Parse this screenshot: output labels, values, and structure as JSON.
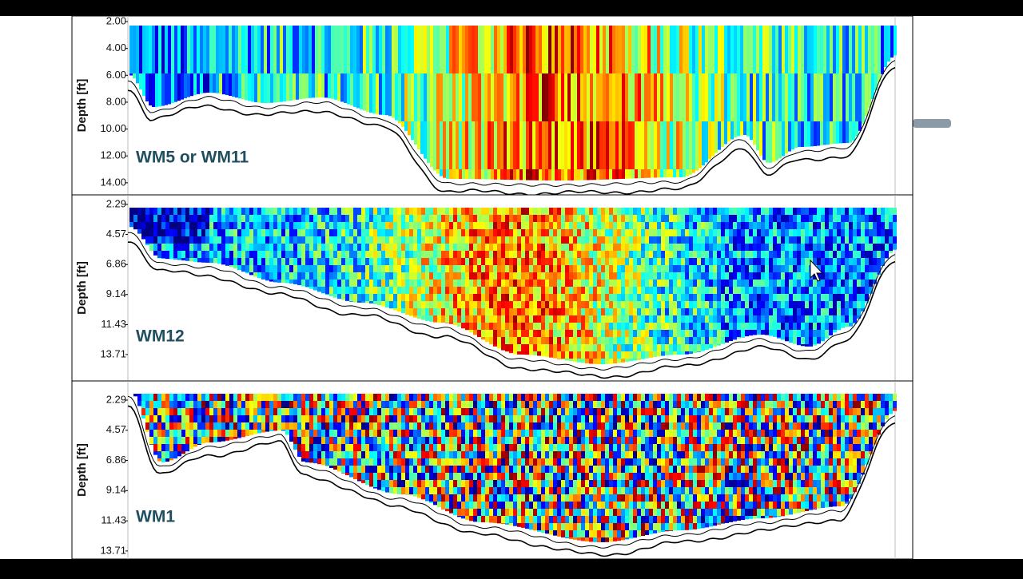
{
  "panels": [
    {
      "label": "WM5 or WM11",
      "y_axis_label": "Depth [ft]",
      "ylim": [
        1.58,
        14.9
      ],
      "yticks": [
        {
          "value": 2,
          "label": "2.00"
        },
        {
          "value": 4,
          "label": "4.00"
        },
        {
          "value": 6,
          "label": "6.00"
        },
        {
          "value": 8,
          "label": "8.00"
        },
        {
          "value": 10,
          "label": "10.00"
        },
        {
          "value": 12,
          "label": "12.00"
        },
        {
          "value": 14,
          "label": "14.00"
        }
      ]
    },
    {
      "label": "WM12",
      "y_axis_label": "Depth [ft]",
      "ylim": [
        1.56,
        15.72
      ],
      "yticks": [
        2.29,
        4.57,
        6.86,
        9.14,
        11.43,
        13.71
      ]
    },
    {
      "label": "WM1",
      "y_axis_label": "Depth [ft]",
      "ylim": [
        0.84,
        14.32
      ],
      "yticks": [
        2.29,
        4.57,
        6.86,
        9.14,
        11.43,
        13.71
      ]
    }
  ]
}
